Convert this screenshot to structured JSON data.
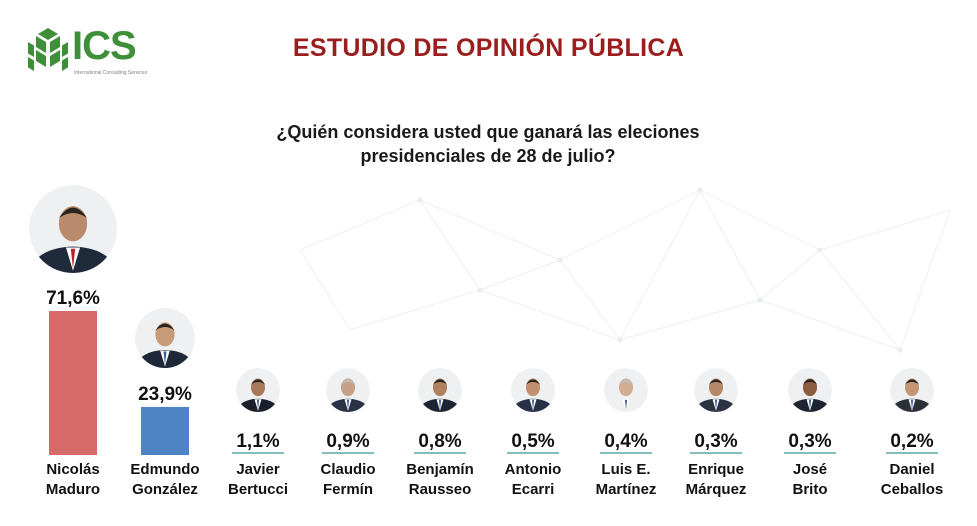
{
  "header": {
    "logo_text": "ICS",
    "logo_subtext": "International Consulting Services",
    "title": "ESTUDIO DE OPINIÓN PÚBLICA"
  },
  "colors": {
    "title": "#9a1e1e",
    "logo_green": "#3f8f3a",
    "bar_first": "#d66a6a",
    "bar_second": "#4f84c4",
    "underline": "#5aa6a6"
  },
  "chart_data": {
    "type": "bar",
    "title": "¿Quién considera usted que ganará las eleciones presidenciales de 28 de julio?",
    "title_lines": [
      "¿Quién considera usted que ganará las eleciones",
      "presidenciales de 28 de julio?"
    ],
    "categories": [
      [
        "Nicolás",
        "Maduro"
      ],
      [
        "Edmundo",
        "González"
      ],
      [
        "Javier",
        "Bertucci"
      ],
      [
        "Claudio",
        "Fermín"
      ],
      [
        "Benjamín",
        "Rausseo"
      ],
      [
        "Antonio",
        "Ecarri"
      ],
      [
        "Luis E.",
        "Martínez"
      ],
      [
        "Enrique",
        "Márquez"
      ],
      [
        "José",
        "Brito"
      ],
      [
        "Daniel",
        "Ceballos"
      ]
    ],
    "values": [
      71.6,
      23.9,
      1.1,
      0.9,
      0.8,
      0.5,
      0.4,
      0.3,
      0.3,
      0.2
    ],
    "value_labels": [
      "71,6%",
      "23,9%",
      "1,1%",
      "0,9%",
      "0,8%",
      "0,5%",
      "0,4%",
      "0,3%",
      "0,3%",
      "0,2%"
    ],
    "bar_colors": [
      "#d66a6a",
      "#4f84c4"
    ],
    "unit": "%",
    "grid": false,
    "legend": "none"
  }
}
